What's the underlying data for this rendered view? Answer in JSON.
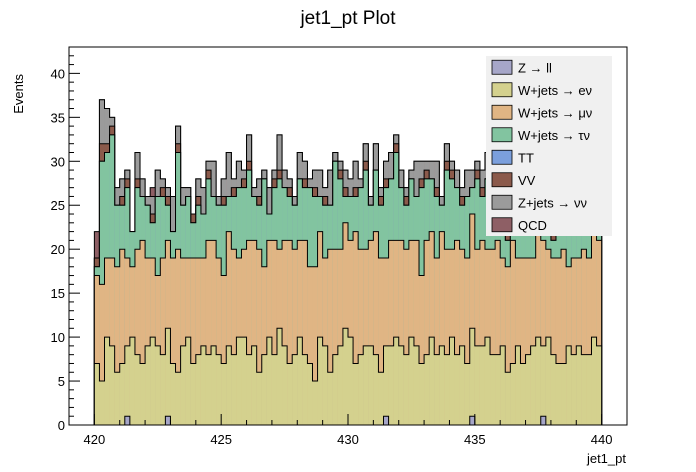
{
  "chart_data": {
    "type": "bar",
    "title": "jet1_pt Plot",
    "xlabel": "jet1_pt",
    "ylabel": "Events",
    "xlim": [
      419,
      441
    ],
    "ylim": [
      0,
      43
    ],
    "x_ticks": [
      "420",
      "425",
      "430",
      "435",
      "440"
    ],
    "y_ticks": [
      "0",
      "5",
      "10",
      "15",
      "20",
      "25",
      "30",
      "35",
      "40"
    ],
    "bins": {
      "start": 420.0,
      "stop": 440.0,
      "count": 100
    },
    "stacked": true,
    "grid": false,
    "legend_position": "top-right",
    "series": [
      {
        "name": "Z → ll",
        "color": "#a6a6c8",
        "values": [
          0,
          0,
          0,
          0,
          0,
          0,
          1,
          0,
          0,
          0,
          0,
          0,
          0,
          0,
          1,
          0,
          0,
          0,
          0,
          0,
          0,
          0,
          0,
          0,
          0,
          0,
          0,
          0,
          0,
          0,
          0,
          0,
          0,
          0,
          0,
          0,
          0,
          0,
          0,
          0,
          0,
          0,
          0,
          0,
          0,
          0,
          0,
          0,
          0,
          0,
          0,
          0,
          0,
          0,
          0,
          0,
          0,
          1,
          0,
          0,
          0,
          0,
          0,
          0,
          0,
          0,
          0,
          0,
          0,
          0,
          0,
          0,
          0,
          0,
          1,
          0,
          0,
          0,
          0,
          0,
          0,
          0,
          0,
          0,
          0,
          0,
          0,
          0,
          1,
          0,
          0,
          0,
          0,
          0,
          0,
          0,
          0,
          0,
          0,
          0
        ]
      },
      {
        "name": "W+jets → eν",
        "color": "#d4d18e",
        "values": [
          7,
          5,
          10,
          9,
          6,
          7,
          8,
          10,
          8,
          7,
          9,
          10,
          9,
          8,
          10,
          7,
          6,
          9,
          10,
          7,
          8,
          9,
          8,
          9,
          8,
          7,
          9,
          8,
          10,
          10,
          8,
          9,
          6,
          8,
          10,
          8,
          11,
          9,
          7,
          8,
          10,
          8,
          7,
          5,
          10,
          9,
          6,
          8,
          9,
          11,
          10,
          7,
          8,
          9,
          9,
          8,
          6,
          8,
          9,
          10,
          9,
          8,
          10,
          9,
          7,
          8,
          10,
          8,
          9,
          8,
          10,
          8,
          9,
          7,
          10,
          9,
          9,
          10,
          8,
          8,
          9,
          6,
          7,
          9,
          7,
          8,
          9,
          10,
          8,
          10,
          8,
          7,
          7,
          9,
          8,
          9,
          8,
          8,
          10,
          9
        ]
      },
      {
        "name": "W+jets → μν",
        "color": "#e0b584",
        "values": [
          10,
          11,
          9,
          10,
          12,
          13,
          10,
          8,
          12,
          14,
          10,
          9,
          8,
          11,
          10,
          12,
          14,
          10,
          9,
          12,
          11,
          10,
          13,
          12,
          11,
          10,
          13,
          12,
          9,
          10,
          13,
          12,
          14,
          10,
          11,
          13,
          9,
          12,
          14,
          12,
          11,
          13,
          11,
          13,
          12,
          10,
          14,
          12,
          11,
          12,
          11,
          15,
          12,
          11,
          12,
          14,
          13,
          10,
          12,
          11,
          12,
          12,
          11,
          12,
          10,
          13,
          12,
          11,
          13,
          12,
          10,
          13,
          11,
          12,
          13,
          11,
          12,
          10,
          12,
          13,
          10,
          12,
          14,
          10,
          12,
          11,
          10,
          13,
          12,
          10,
          11,
          12,
          13,
          9,
          11,
          10,
          12,
          11,
          12,
          12
        ]
      },
      {
        "name": "W+jets → τν",
        "color": "#82c4a0",
        "values": [
          1,
          14,
          12,
          14,
          7,
          5,
          8,
          4,
          7,
          5,
          6,
          4,
          9,
          7,
          4,
          3,
          11,
          6,
          7,
          4,
          6,
          5,
          7,
          5,
          6,
          8,
          4,
          6,
          8,
          7,
          8,
          5,
          5,
          10,
          3,
          6,
          8,
          6,
          5,
          5,
          7,
          6,
          9,
          8,
          4,
          6,
          5,
          10,
          8,
          3,
          5,
          4,
          7,
          9,
          4,
          7,
          6,
          8,
          7,
          10,
          6,
          5,
          7,
          5,
          10,
          7,
          6,
          7,
          3,
          9,
          8,
          6,
          5,
          7,
          3,
          8,
          5,
          8,
          6,
          3,
          5,
          3,
          6,
          7,
          7,
          5,
          4,
          2,
          5,
          9,
          2,
          8,
          6,
          5,
          3,
          6,
          5,
          4,
          2,
          3
        ]
      },
      {
        "name": "TT",
        "color": "#7b9fdc",
        "values": [
          0,
          0,
          0,
          0,
          0,
          0,
          0,
          0,
          0,
          0,
          0,
          0,
          0,
          0,
          0,
          0,
          0,
          0,
          0,
          0,
          0,
          0,
          0,
          0,
          0,
          0,
          0,
          0,
          0,
          0,
          0,
          0,
          0,
          0,
          0,
          0,
          0,
          0,
          0,
          0,
          0,
          0,
          0,
          0,
          0,
          0,
          0,
          0,
          0,
          0,
          0,
          0,
          0,
          0,
          0,
          0,
          0,
          0,
          0,
          0,
          0,
          0,
          0,
          0,
          0,
          0,
          0,
          0,
          0,
          0,
          0,
          0,
          0,
          0,
          0,
          0,
          0,
          0,
          0,
          0,
          0,
          0,
          0,
          0,
          0,
          0,
          0,
          0,
          0,
          0,
          0,
          0,
          0,
          0,
          0,
          0,
          0,
          0,
          0,
          0
        ]
      },
      {
        "name": "VV",
        "color": "#8b5a4b",
        "values": [
          1,
          2,
          1,
          1,
          0,
          1,
          1,
          0,
          1,
          0,
          0,
          1,
          0,
          1,
          1,
          0,
          1,
          0,
          0,
          1,
          1,
          0,
          1,
          0,
          0,
          1,
          0,
          1,
          0,
          1,
          1,
          0,
          1,
          0,
          0,
          1,
          1,
          0,
          1,
          0,
          0,
          1,
          0,
          1,
          0,
          1,
          0,
          0,
          1,
          1,
          0,
          1,
          0,
          1,
          0,
          0,
          1,
          1,
          0,
          1,
          0,
          1,
          0,
          0,
          1,
          1,
          0,
          1,
          0,
          1,
          1,
          0,
          1,
          0,
          0,
          1,
          1,
          0,
          1,
          0,
          0,
          1,
          1,
          0,
          1,
          0,
          0,
          1,
          0,
          1,
          1,
          0,
          1,
          0,
          1,
          0,
          0,
          1,
          0,
          0
        ]
      },
      {
        "name": "Z+jets → νν",
        "color": "#9b9b9b",
        "values": [
          0,
          5,
          4,
          1,
          2,
          2,
          1,
          0,
          3,
          2,
          1,
          2,
          3,
          1,
          1,
          4,
          2,
          2,
          1,
          0,
          2,
          3,
          1,
          4,
          1,
          2,
          5,
          1,
          3,
          1,
          3,
          1,
          2,
          1,
          3,
          1,
          4,
          2,
          1,
          1,
          3,
          2,
          1,
          2,
          3,
          1,
          4,
          1,
          1,
          2,
          2,
          3,
          1,
          2,
          1,
          3,
          1,
          2,
          3,
          1,
          2,
          1,
          1,
          4,
          2,
          1,
          2,
          3,
          1,
          2,
          1,
          2,
          1,
          3,
          2,
          1,
          2,
          3,
          1,
          1,
          2,
          1,
          3,
          1,
          2,
          1,
          2,
          1,
          1,
          2,
          3,
          1,
          2,
          1,
          2,
          1,
          1,
          2,
          1,
          1
        ]
      },
      {
        "name": "QCD",
        "color": "#8e5f65",
        "values": [
          3,
          0,
          0,
          0,
          0,
          0,
          0,
          0,
          0,
          0,
          0,
          1,
          0,
          0,
          0,
          0,
          0,
          0,
          0,
          0,
          0,
          0,
          0,
          0,
          0,
          0,
          0,
          0,
          0,
          0,
          0,
          0,
          0,
          0,
          0,
          0,
          0,
          0,
          0,
          0,
          0,
          0,
          0,
          0,
          0,
          0,
          0,
          0,
          0,
          0,
          0,
          0,
          0,
          0,
          0,
          0,
          0,
          0,
          0,
          0,
          0,
          0,
          0,
          0,
          0,
          0,
          0,
          0,
          0,
          0,
          0,
          0,
          0,
          0,
          0,
          0,
          0,
          0,
          0,
          0,
          0,
          0,
          0,
          0,
          0,
          0,
          0,
          0,
          0,
          0,
          0,
          0,
          0,
          0,
          0,
          0,
          0,
          0,
          0,
          0
        ]
      }
    ]
  }
}
